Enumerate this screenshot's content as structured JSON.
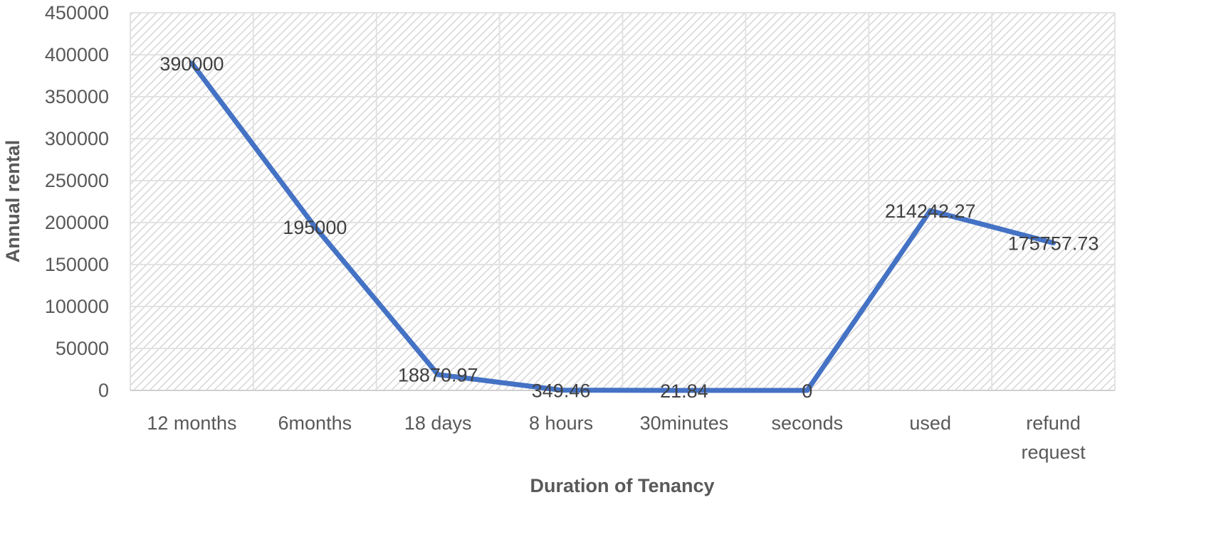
{
  "chart_data": {
    "type": "line",
    "title": "",
    "xlabel": "Duration of Tenancy",
    "ylabel": "Annual rental",
    "categories": [
      "12 months",
      "6months",
      "18 days",
      "8 hours",
      "30minutes",
      "seconds",
      "used",
      "refund request"
    ],
    "series": [
      {
        "name": "Annual rental",
        "color": "#4472C4",
        "values": [
          390000,
          195000,
          18870.97,
          349.46,
          21.84,
          0,
          214242.27,
          175757.73
        ],
        "labels": [
          "390000",
          "195000",
          "18870.97",
          "349.46",
          "21.84",
          "0",
          "214242.27",
          "175757.73"
        ]
      }
    ],
    "ylim": [
      0,
      450000
    ],
    "yticks": [
      "0",
      "50000",
      "100000",
      "150000",
      "200000",
      "250000",
      "300000",
      "350000",
      "400000",
      "450000"
    ],
    "grid": true,
    "legend": "none",
    "plot_background": "diagonal-hatch light gray"
  },
  "axes": {
    "x_title": "Duration of Tenancy",
    "y_title": "Annual rental"
  }
}
